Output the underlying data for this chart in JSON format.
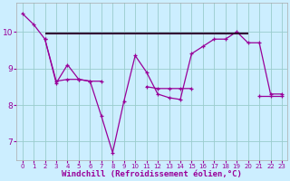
{
  "x": [
    0,
    1,
    2,
    3,
    4,
    5,
    6,
    7,
    8,
    9,
    10,
    11,
    12,
    13,
    14,
    15,
    16,
    17,
    18,
    19,
    20,
    21,
    22,
    23
  ],
  "line1": [
    10.5,
    10.2,
    9.8,
    8.6,
    9.1,
    8.7,
    8.65,
    7.7,
    6.7,
    8.1,
    9.35,
    8.9,
    8.3,
    8.2,
    8.15,
    9.4,
    9.6,
    9.8,
    9.8,
    10.0,
    9.7,
    9.7,
    8.3,
    8.3
  ],
  "line2_x": [
    2,
    3,
    4,
    5,
    6,
    7,
    11,
    12,
    13,
    14,
    15,
    21,
    22,
    23
  ],
  "line2_y": [
    9.8,
    8.65,
    8.7,
    8.7,
    8.65,
    8.65,
    8.5,
    8.45,
    8.45,
    8.45,
    8.45,
    8.25,
    8.25,
    8.25
  ],
  "hline_y": 9.95,
  "hline_x0": 2,
  "hline_x1": 20,
  "line_color": "#990099",
  "hline_color": "#330033",
  "bg_color": "#cceeff",
  "grid_color": "#99cccc",
  "xlabel": "Windchill (Refroidissement éolien,°C)",
  "xlim": [
    -0.5,
    23.5
  ],
  "ylim": [
    6.5,
    10.8
  ],
  "yticks": [
    7,
    8,
    9,
    10
  ],
  "xticks": [
    0,
    1,
    2,
    3,
    4,
    5,
    6,
    7,
    8,
    9,
    10,
    11,
    12,
    13,
    14,
    15,
    16,
    17,
    18,
    19,
    20,
    21,
    22,
    23
  ]
}
